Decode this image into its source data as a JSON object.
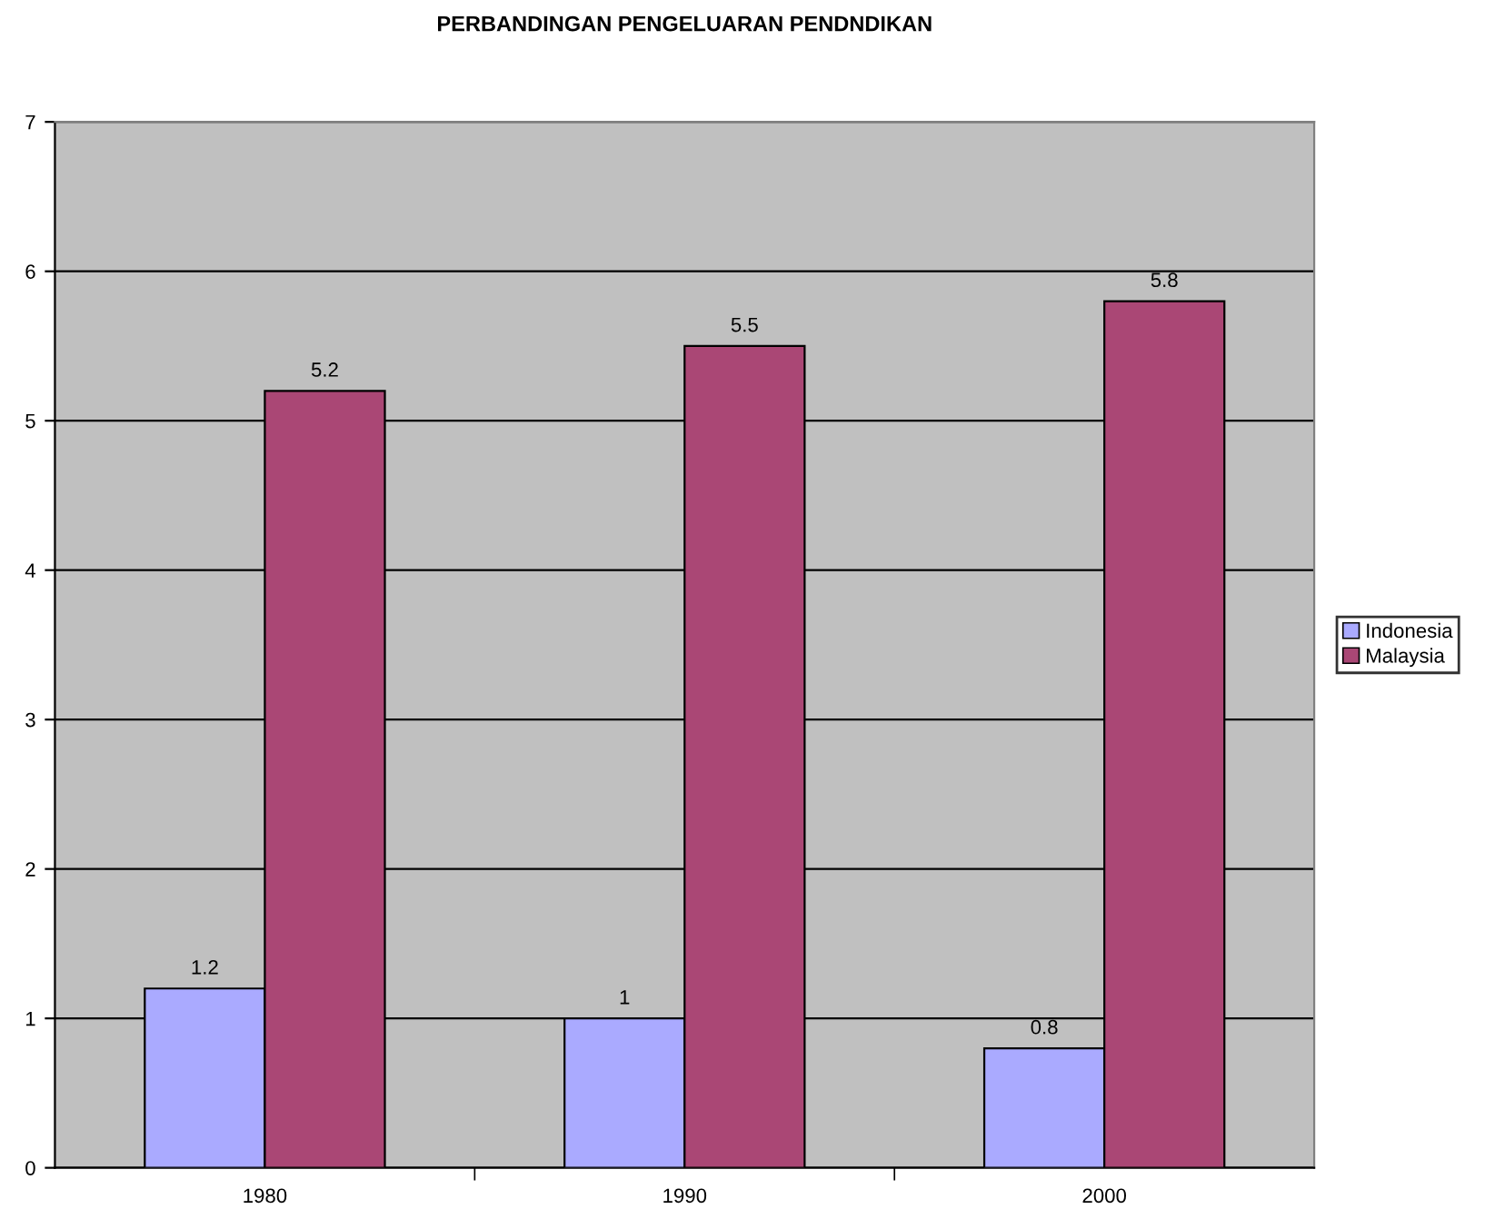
{
  "chart_data": {
    "type": "bar",
    "title": "PERBANDINGAN PENGELUARAN PENDNDIKAN",
    "categories": [
      "1980",
      "1990",
      "2000"
    ],
    "series": [
      {
        "name": "Indonesia",
        "color": "#aaaaff",
        "values": [
          1.2,
          1,
          0.8
        ]
      },
      {
        "name": "Malaysia",
        "color": "#aa4775",
        "values": [
          5.2,
          5.5,
          5.8
        ]
      }
    ],
    "ylim": [
      0,
      7
    ],
    "yticks": [
      0,
      1,
      2,
      3,
      4,
      5,
      6,
      7
    ],
    "grid": "y",
    "legend": "right",
    "data_labels": true
  }
}
